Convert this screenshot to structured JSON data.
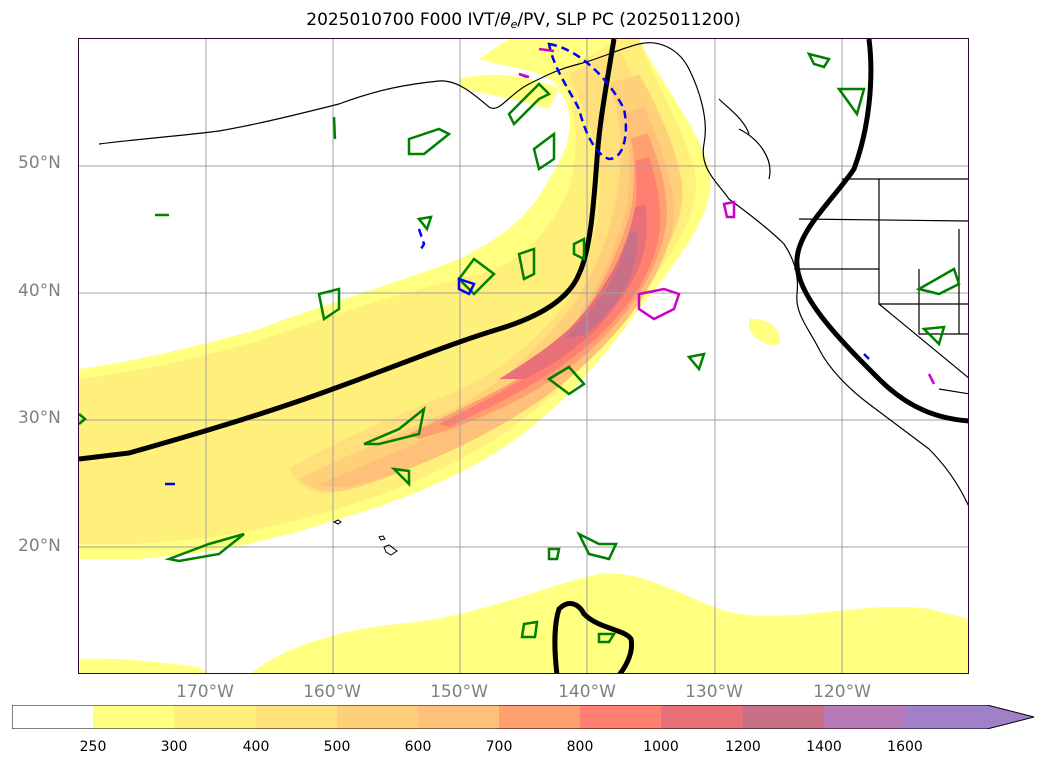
{
  "title": {
    "prefix": "2025010700 F000 IVT/",
    "theta_symbol": "θ",
    "theta_sub": "e",
    "suffix": "/PV, SLP PC (2025011200)"
  },
  "map": {
    "lat_labels": [
      "50°N",
      "40°N",
      "30°N",
      "20°N"
    ],
    "lon_labels": [
      "170°W",
      "160°W",
      "150°W",
      "140°W",
      "130°W",
      "120°W"
    ],
    "gridlines": true,
    "ivt_levels": [
      "250",
      "300",
      "400",
      "500",
      "600",
      "700",
      "800",
      "1000",
      "1200",
      "1400",
      "1600"
    ],
    "colors": {
      "fill": [
        "#ffffff",
        "#ffff80",
        "#fff07c",
        "#ffe07a",
        "#ffd07a",
        "#ffc07a",
        "#ffa070",
        "#ff8070",
        "#e87078",
        "#c77088",
        "#b77ab8",
        "#a080c8"
      ],
      "slp_contour": "#000000",
      "theta_e_contour": "#008000",
      "pv_positive": "#cc00cc",
      "pv_negative": "#0000ff",
      "coastline": "#000000"
    }
  },
  "colorbar": {
    "ticks": [
      "250",
      "300",
      "400",
      "500",
      "600",
      "700",
      "800",
      "1000",
      "1200",
      "1400",
      "1600"
    ],
    "extend": "max"
  }
}
